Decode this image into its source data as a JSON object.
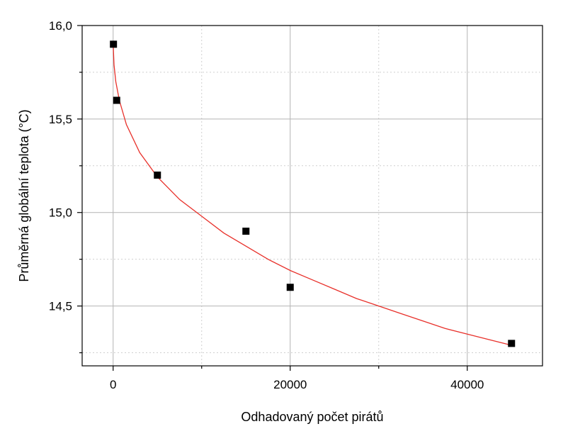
{
  "chart_data": {
    "type": "scatter",
    "xlabel": "Odhadovaný počet pirátů",
    "ylabel": "Průměrná globální teplota (°C)",
    "xlim": [
      -3500,
      48500
    ],
    "ylim": [
      14.18,
      16.0
    ],
    "x_ticks": [
      {
        "value": 0,
        "label": "0"
      },
      {
        "value": 20000,
        "label": "20000"
      },
      {
        "value": 40000,
        "label": "40000"
      }
    ],
    "x_minor_ticks": [
      10000,
      30000
    ],
    "y_ticks": [
      {
        "value": 14.5,
        "label": "14,5"
      },
      {
        "value": 15.0,
        "label": "15,0"
      },
      {
        "value": 15.5,
        "label": "15,5"
      },
      {
        "value": 16.0,
        "label": "16,0"
      }
    ],
    "y_minor_ticks": [
      14.25,
      14.75,
      15.25,
      15.75
    ],
    "grid": true,
    "series": [
      {
        "marker": "square",
        "color": "#000000",
        "points": [
          {
            "x": 35,
            "y": 15.9
          },
          {
            "x": 400,
            "y": 15.6
          },
          {
            "x": 5000,
            "y": 15.2
          },
          {
            "x": 15000,
            "y": 14.9
          },
          {
            "x": 20000,
            "y": 14.6
          },
          {
            "x": 45000,
            "y": 14.3
          }
        ]
      }
    ],
    "fit_curve": {
      "color": "#e8302a",
      "x": [
        0,
        100,
        300,
        700,
        1500,
        3000,
        5000,
        7500,
        10000,
        12500,
        15000,
        17500,
        20000,
        22500,
        25000,
        27500,
        30000,
        32500,
        35000,
        37500,
        40000,
        42500,
        45000
      ],
      "y": [
        15.9,
        15.79,
        15.7,
        15.6,
        15.47,
        15.32,
        15.19,
        15.07,
        14.98,
        14.89,
        14.82,
        14.75,
        14.69,
        14.64,
        14.59,
        14.54,
        14.5,
        14.46,
        14.42,
        14.38,
        14.35,
        14.32,
        14.29
      ]
    }
  }
}
